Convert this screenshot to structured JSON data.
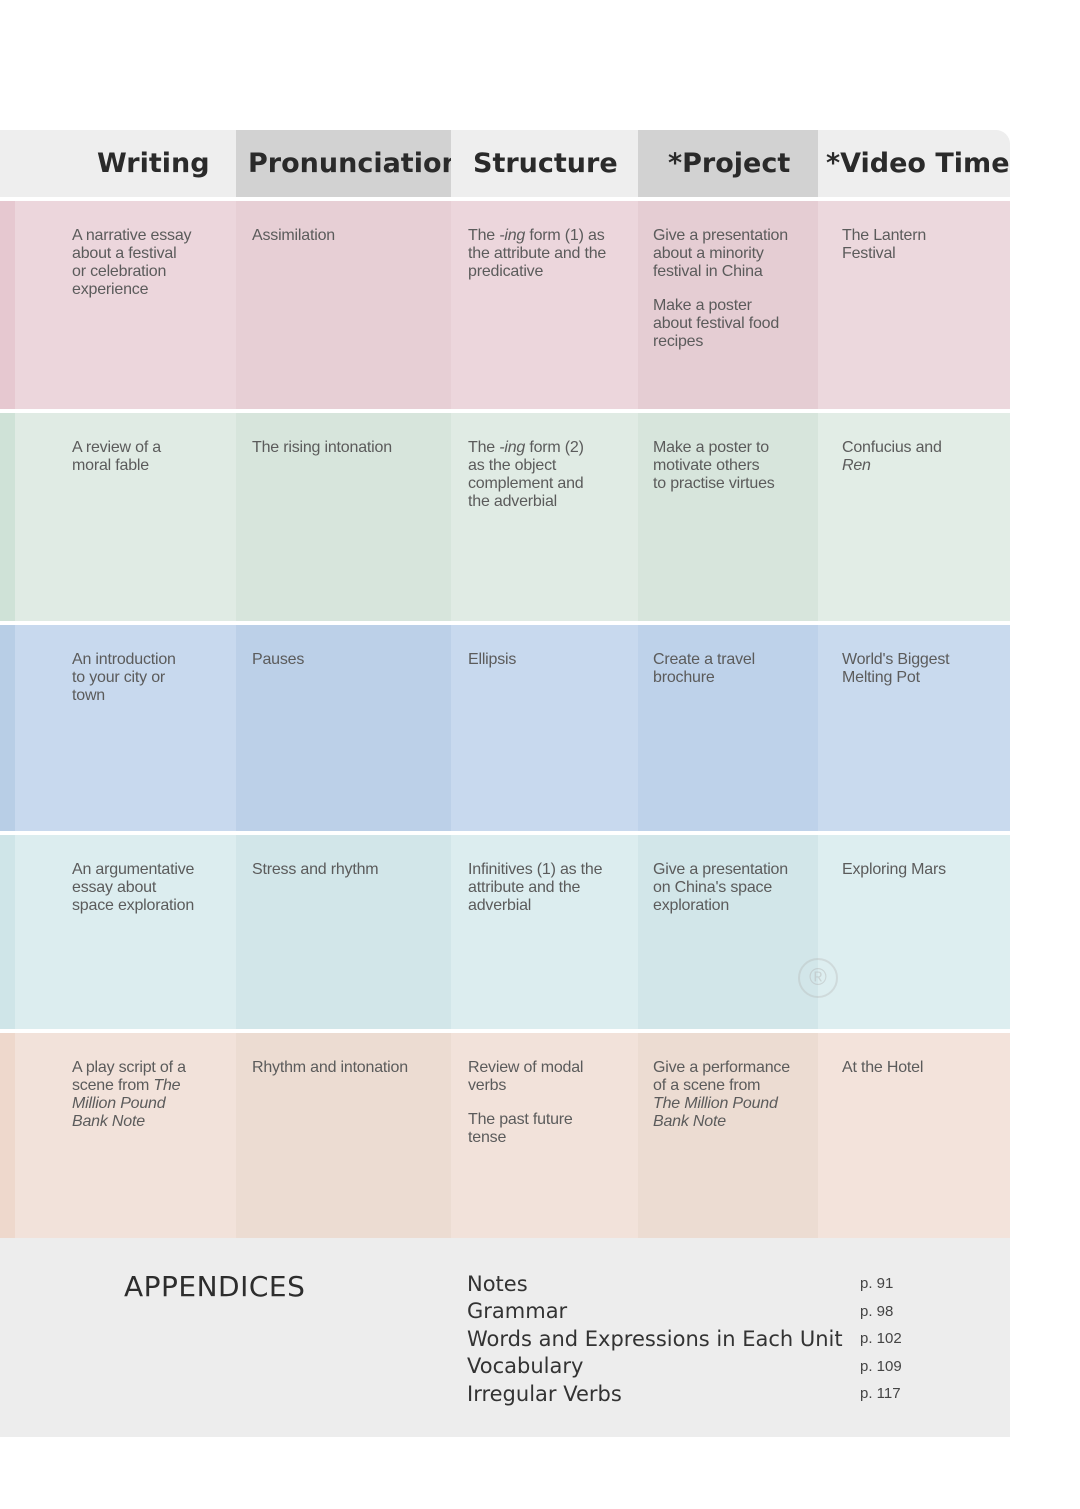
{
  "headers": [
    "Writing",
    "Pronunciation",
    "Structure",
    "*Project",
    "*Video Time"
  ],
  "colors": {
    "header_dark": "#d2d2d2",
    "header_light": "#eeeeee",
    "row1": [
      "#e6c8d0",
      "#ecd6dc",
      "#e7cfd5",
      "#ecd6dc",
      "#e5cdd3",
      "#ecd8dd"
    ],
    "row2": [
      "#cfe2d7",
      "#e0ebe4",
      "#d7e5dc",
      "#e0ebe4",
      "#d7e5dc",
      "#e2ede6"
    ],
    "row3": [
      "#b8cee6",
      "#c8d9ee",
      "#bcd0e8",
      "#c8d9ee",
      "#bed2ea",
      "#c9daee"
    ],
    "row4": [
      "#cfe5e8",
      "#dcedef",
      "#d2e6e9",
      "#dcedef",
      "#d2e6e9",
      "#ddeef0"
    ],
    "row5": [
      "#eed8cc",
      "#f2e2da",
      "#ecdcd2",
      "#f2e2da",
      "#ecdcd2",
      "#f3e3db"
    ],
    "appendix_bg": "#ededed"
  },
  "rows": [
    {
      "writing": "A narrative essay\nabout a festival\nor celebration\nexperience",
      "pronunciation": "Assimilation",
      "structure_pre": "The ",
      "structure_em": "-ing",
      "structure_post": " form (1) as\nthe attribute and the\npredicative",
      "project": [
        "Give a presentation\nabout a minority\nfestival in China",
        "Make a poster\nabout festival food\nrecipes"
      ],
      "video": "The Lantern\nFestival"
    },
    {
      "writing": "A review of a\nmoral fable",
      "pronunciation": "The rising intonation",
      "structure_pre": "The ",
      "structure_em": "-ing",
      "structure_post": " form (2)\nas the object\ncomplement and\nthe adverbial",
      "project": [
        "Make a poster to\nmotivate others\nto practise virtues"
      ],
      "video_pre": "Confucius and\n",
      "video_em": "Ren"
    },
    {
      "writing": "An introduction\nto your city or\ntown",
      "pronunciation": "Pauses",
      "structure": "Ellipsis",
      "project": [
        "Create a travel\nbrochure"
      ],
      "video": "World's Biggest\nMelting Pot"
    },
    {
      "writing": "An argumentative\nessay about\nspace exploration",
      "pronunciation": "Stress and rhythm",
      "structure": "Infinitives (1) as the\nattribute and the\nadverbial",
      "project": [
        "Give a presentation\non China's space\nexploration"
      ],
      "video": "Exploring Mars"
    },
    {
      "writing_pre": "A play script of a\nscene from ",
      "writing_em": "The\nMillion Pound\nBank Note",
      "pronunciation": "Rhythm and intonation",
      "structure_list": [
        "Review of modal\nverbs",
        "The past future\ntense"
      ],
      "project_pre": "Give a performance\nof a scene from\n",
      "project_em": "The Million Pound\nBank Note",
      "video": "At the Hotel"
    }
  ],
  "appendix": {
    "title": "APPENDICES",
    "items": [
      {
        "name": "Notes",
        "page": "p. 91"
      },
      {
        "name": "Grammar",
        "page": "p. 98"
      },
      {
        "name": "Words and Expressions in Each Unit",
        "page": "p. 102"
      },
      {
        "name": "Vocabulary",
        "page": "p. 109"
      },
      {
        "name": "Irregular Verbs",
        "page": "p. 117"
      }
    ]
  },
  "watermark": "®"
}
